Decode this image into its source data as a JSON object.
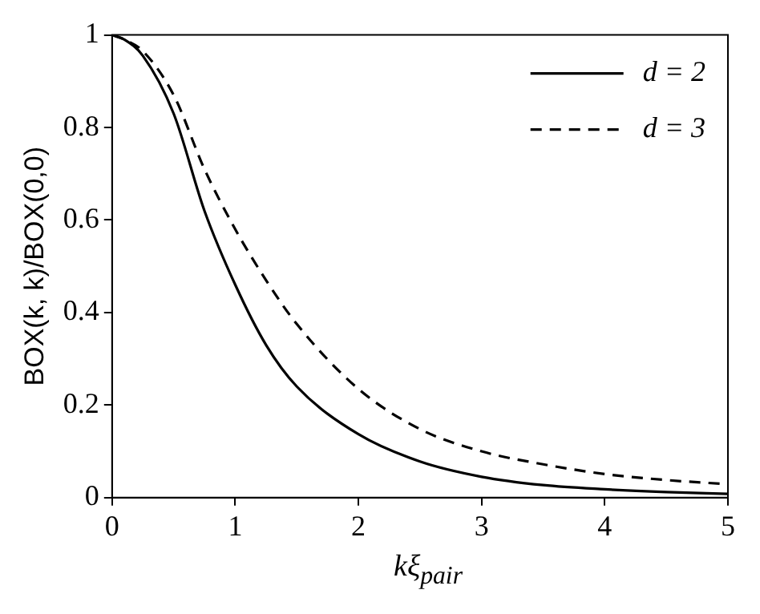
{
  "chart_data": {
    "type": "line",
    "xlabel": "kξ$_{pair}$",
    "ylabel": "BOX(k, k)/BOX(0,0)",
    "xlim": [
      0,
      5
    ],
    "xticks": [
      0,
      1,
      2,
      3,
      4,
      5
    ],
    "ylim": [
      0,
      1
    ],
    "yticks": [
      0,
      0.2,
      0.4,
      0.6,
      0.8,
      1
    ],
    "grid": false,
    "legend": "top right",
    "marker": "none",
    "series": [
      {
        "name": "d = 2",
        "color": "#000000",
        "line_style": "solid",
        "x": [
          0,
          0.1,
          0.25,
          0.5,
          0.75,
          1,
          1.25,
          1.5,
          2,
          2.5,
          3,
          3.5,
          4,
          4.5,
          5
        ],
        "values": [
          1,
          0.99,
          0.955,
          0.83,
          0.62,
          0.46,
          0.33,
          0.24,
          0.137,
          0.078,
          0.045,
          0.027,
          0.018,
          0.012,
          0.008
        ]
      },
      {
        "name": "d = 3",
        "color": "#000000",
        "line_style": "dashed",
        "x": [
          0,
          0.1,
          0.25,
          0.5,
          0.75,
          1,
          1.25,
          1.5,
          2,
          2.5,
          3,
          3.5,
          4,
          4.5,
          5
        ],
        "values": [
          1,
          0.99,
          0.965,
          0.87,
          0.71,
          0.58,
          0.47,
          0.375,
          0.235,
          0.148,
          0.1,
          0.072,
          0.051,
          0.038,
          0.029
        ]
      }
    ]
  }
}
